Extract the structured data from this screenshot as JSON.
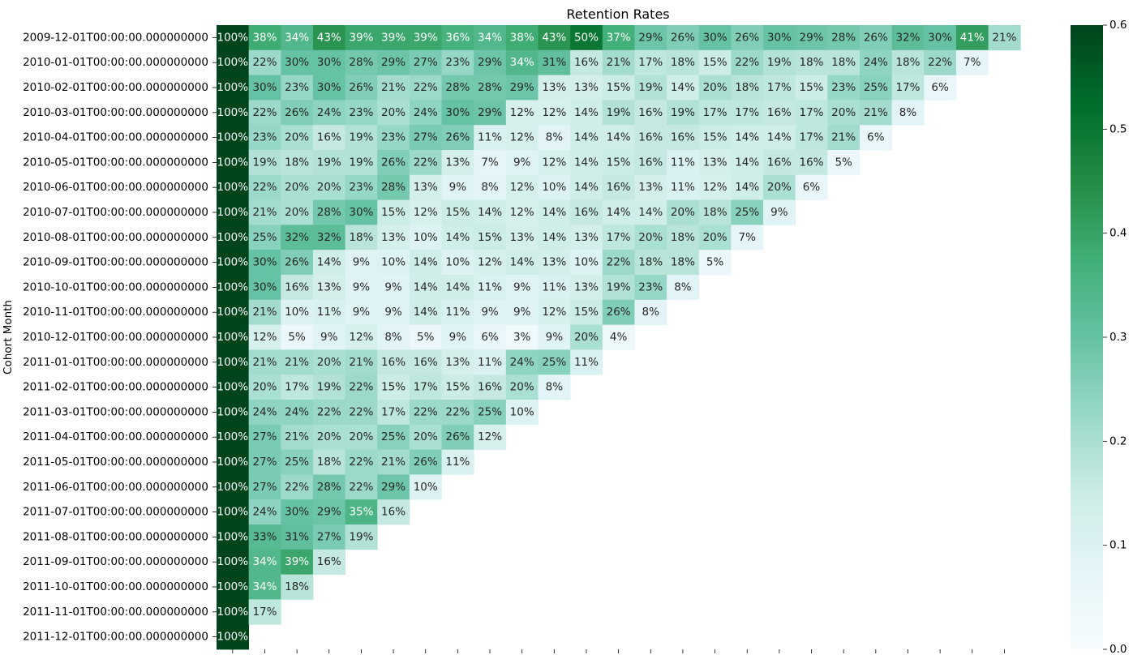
{
  "chart_data": {
    "type": "heatmap",
    "title": "Retention Rates",
    "ylabel": "Cohort Month",
    "xlabel": "",
    "value_format": "percent",
    "colormap": "BuGn",
    "vmin": 0.0,
    "vmax": 0.6,
    "colorbar_ticks": [
      "0.0",
      "0.1",
      "0.2",
      "0.3",
      "0.4",
      "0.5",
      "0.6"
    ],
    "rows": [
      "2009-12-01T00:00:00.000000000",
      "2010-01-01T00:00:00.000000000",
      "2010-02-01T00:00:00.000000000",
      "2010-03-01T00:00:00.000000000",
      "2010-04-01T00:00:00.000000000",
      "2010-05-01T00:00:00.000000000",
      "2010-06-01T00:00:00.000000000",
      "2010-07-01T00:00:00.000000000",
      "2010-08-01T00:00:00.000000000",
      "2010-09-01T00:00:00.000000000",
      "2010-10-01T00:00:00.000000000",
      "2010-11-01T00:00:00.000000000",
      "2010-12-01T00:00:00.000000000",
      "2011-01-01T00:00:00.000000000",
      "2011-02-01T00:00:00.000000000",
      "2011-03-01T00:00:00.000000000",
      "2011-04-01T00:00:00.000000000",
      "2011-05-01T00:00:00.000000000",
      "2011-06-01T00:00:00.000000000",
      "2011-07-01T00:00:00.000000000",
      "2011-08-01T00:00:00.000000000",
      "2011-09-01T00:00:00.000000000",
      "2011-10-01T00:00:00.000000000",
      "2011-11-01T00:00:00.000000000",
      "2011-12-01T00:00:00.000000000"
    ],
    "values": [
      [
        100,
        38,
        34,
        43,
        39,
        39,
        39,
        36,
        34,
        38,
        43,
        50,
        37,
        29,
        26,
        30,
        26,
        30,
        29,
        28,
        26,
        32,
        30,
        41,
        21
      ],
      [
        100,
        22,
        30,
        30,
        28,
        29,
        27,
        23,
        29,
        34,
        31,
        16,
        21,
        17,
        18,
        15,
        22,
        19,
        18,
        18,
        24,
        18,
        22,
        7
      ],
      [
        100,
        30,
        23,
        30,
        26,
        21,
        22,
        28,
        28,
        29,
        13,
        13,
        15,
        19,
        14,
        20,
        18,
        17,
        15,
        23,
        25,
        17,
        6
      ],
      [
        100,
        22,
        26,
        24,
        23,
        20,
        24,
        30,
        29,
        12,
        12,
        14,
        19,
        16,
        19,
        17,
        17,
        16,
        17,
        20,
        21,
        8
      ],
      [
        100,
        23,
        20,
        16,
        19,
        23,
        27,
        26,
        11,
        12,
        8,
        14,
        14,
        16,
        16,
        15,
        14,
        14,
        17,
        21,
        6
      ],
      [
        100,
        19,
        18,
        19,
        19,
        26,
        22,
        13,
        7,
        9,
        12,
        14,
        15,
        16,
        11,
        13,
        14,
        16,
        16,
        5
      ],
      [
        100,
        22,
        20,
        20,
        23,
        28,
        13,
        9,
        8,
        12,
        10,
        14,
        16,
        13,
        11,
        12,
        14,
        20,
        6
      ],
      [
        100,
        21,
        20,
        28,
        30,
        15,
        12,
        15,
        14,
        12,
        14,
        16,
        14,
        14,
        20,
        18,
        25,
        9
      ],
      [
        100,
        25,
        32,
        32,
        18,
        13,
        10,
        14,
        15,
        13,
        14,
        13,
        17,
        20,
        18,
        20,
        7
      ],
      [
        100,
        30,
        26,
        14,
        9,
        10,
        14,
        10,
        12,
        14,
        13,
        10,
        22,
        18,
        18,
        5
      ],
      [
        100,
        30,
        16,
        13,
        9,
        9,
        14,
        14,
        11,
        9,
        11,
        13,
        19,
        23,
        8
      ],
      [
        100,
        21,
        10,
        11,
        9,
        9,
        14,
        11,
        9,
        9,
        12,
        15,
        26,
        8
      ],
      [
        100,
        12,
        5,
        9,
        12,
        8,
        5,
        9,
        6,
        3,
        9,
        20,
        4
      ],
      [
        100,
        21,
        21,
        20,
        21,
        16,
        16,
        13,
        11,
        24,
        25,
        11
      ],
      [
        100,
        20,
        17,
        19,
        22,
        15,
        17,
        15,
        16,
        20,
        8
      ],
      [
        100,
        24,
        24,
        22,
        22,
        17,
        22,
        22,
        25,
        10
      ],
      [
        100,
        27,
        21,
        20,
        20,
        25,
        20,
        26,
        12
      ],
      [
        100,
        27,
        25,
        18,
        22,
        21,
        26,
        11
      ],
      [
        100,
        27,
        22,
        28,
        22,
        29,
        10
      ],
      [
        100,
        24,
        30,
        29,
        35,
        16
      ],
      [
        100,
        33,
        31,
        27,
        19
      ],
      [
        100,
        34,
        39,
        16
      ],
      [
        100,
        34,
        18
      ],
      [
        100,
        17
      ],
      [
        100
      ]
    ]
  }
}
